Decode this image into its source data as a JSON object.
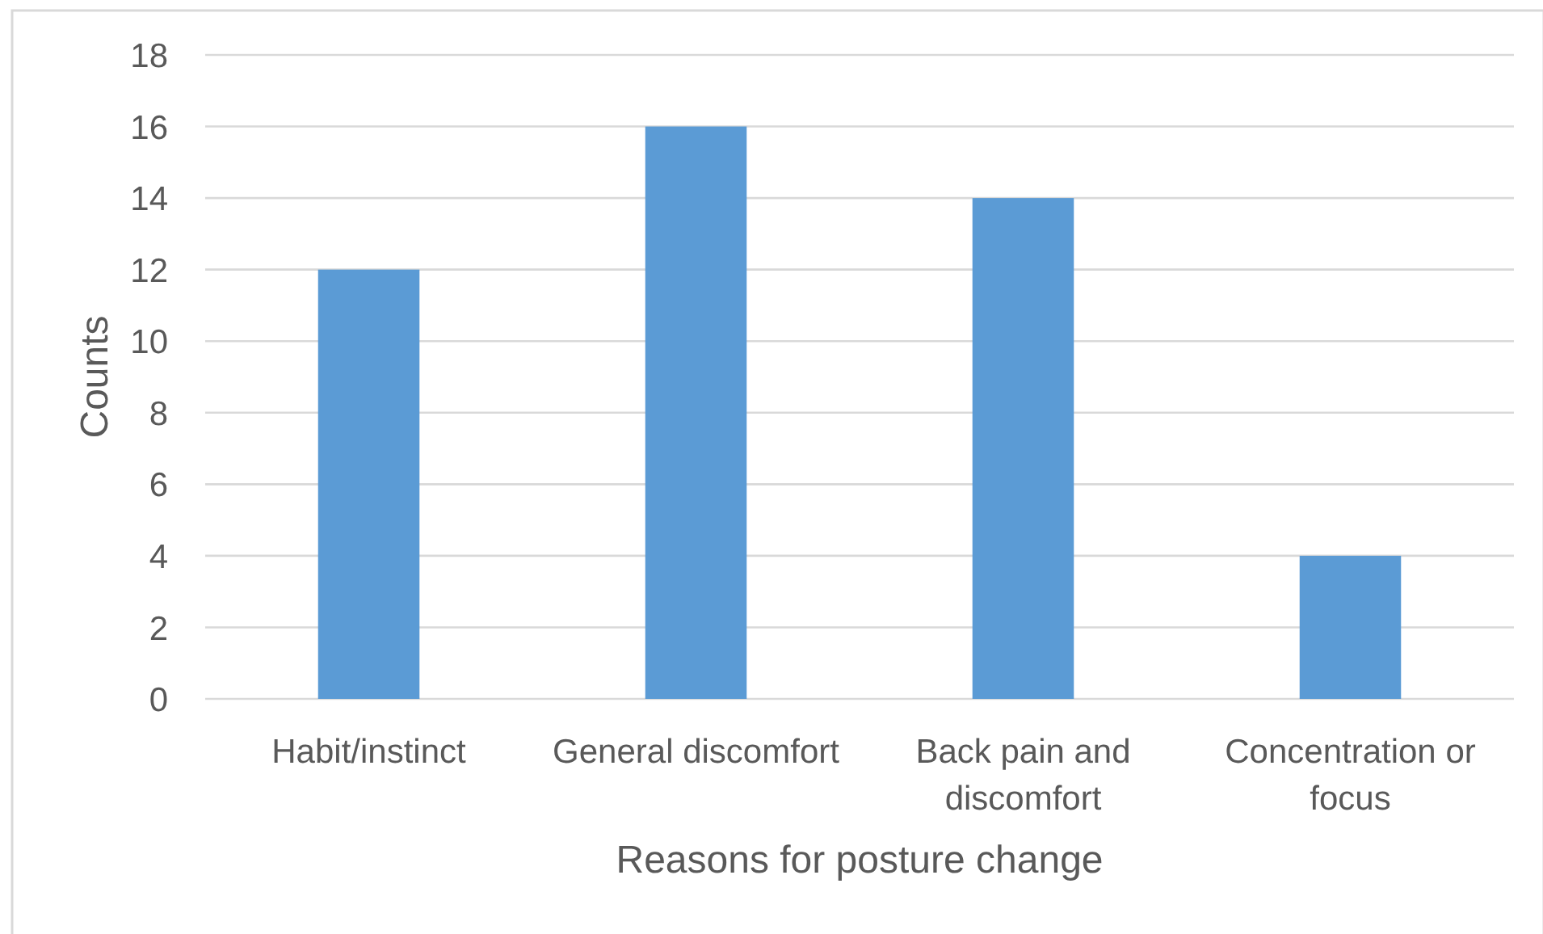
{
  "chart_data": {
    "type": "bar",
    "categories": [
      "Habit/instinct",
      "General discomfort",
      "Back pain and discomfort",
      "Concentration or focus"
    ],
    "values": [
      12,
      16,
      14,
      4
    ],
    "color": "#5b9bd5",
    "xlabel": "Reasons for posture change",
    "ylabel": "Counts",
    "ylim": [
      0,
      18
    ],
    "yticks": [
      0,
      2,
      4,
      6,
      8,
      10,
      12,
      14,
      16,
      18
    ],
    "grid": "y"
  }
}
